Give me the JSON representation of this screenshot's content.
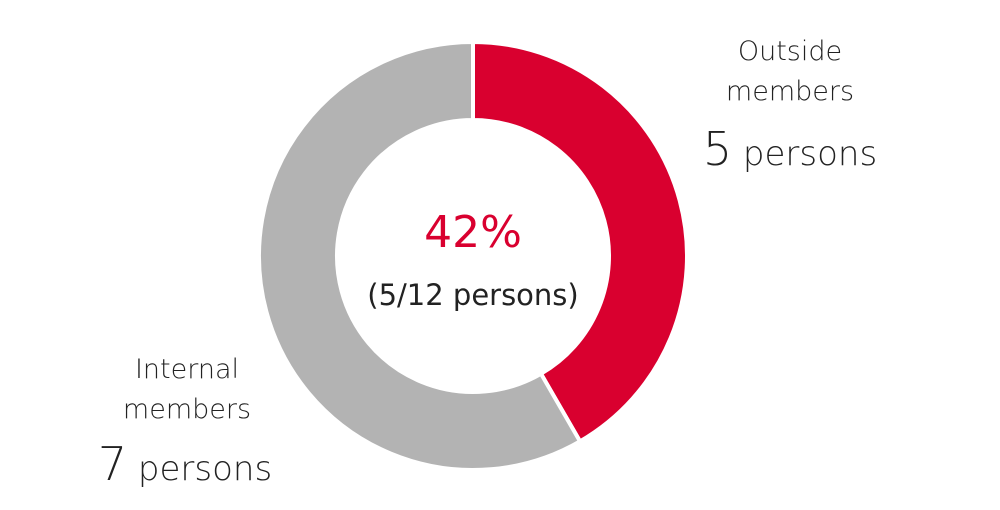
{
  "chart_data": {
    "type": "donut",
    "categories": [
      "Outside members",
      "Internal members"
    ],
    "values": [
      5,
      7
    ],
    "value_labels": [
      "5 persons",
      "7 persons"
    ],
    "colors": [
      "#d9002f",
      "#b3b3b3"
    ],
    "center_label": "42%",
    "center_sublabel": "(5/12 persons)"
  }
}
